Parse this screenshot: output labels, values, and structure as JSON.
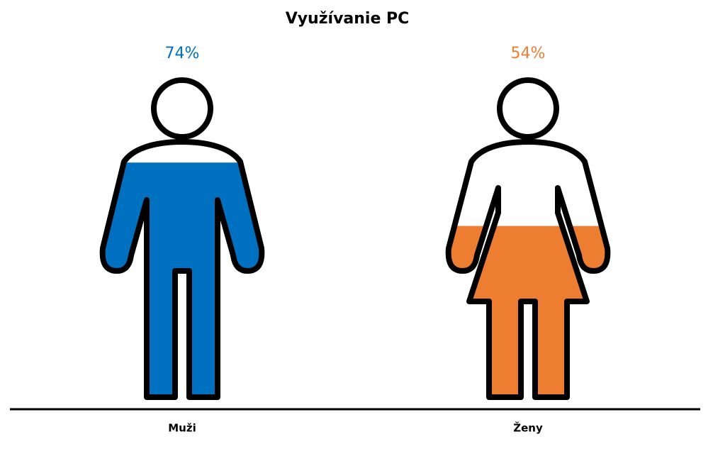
{
  "chart_data": {
    "type": "pictogram",
    "title": "Využívanie PC",
    "categories": [
      "Muži",
      "Ženy"
    ],
    "figures": [
      "man",
      "woman"
    ],
    "values": [
      74,
      54
    ],
    "value_labels": [
      "74%",
      "54%"
    ],
    "colors": [
      "#0070c0",
      "#ed7d31"
    ],
    "ylim": [
      0,
      100
    ]
  }
}
